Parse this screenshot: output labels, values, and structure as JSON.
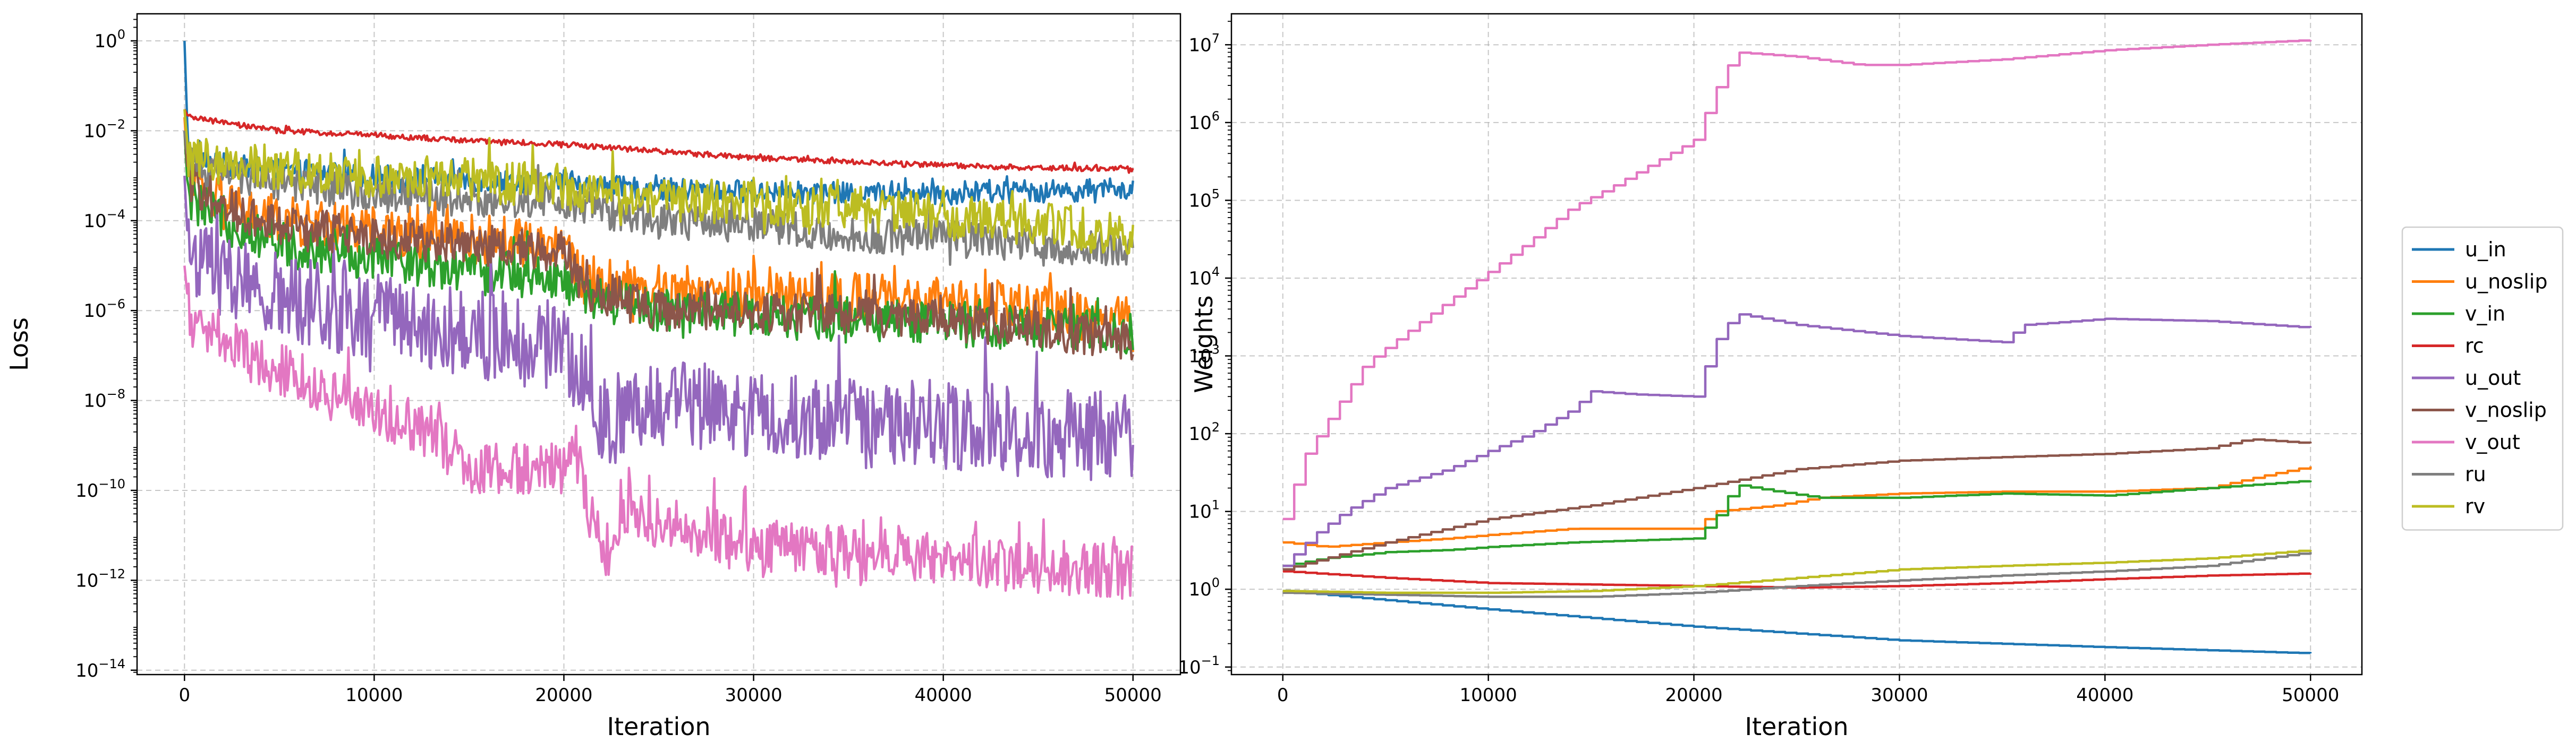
{
  "chart_data": [
    {
      "type": "line",
      "xlabel": "Iteration",
      "ylabel": "Loss",
      "yscale": "log",
      "xlim": [
        -2500,
        52500
      ],
      "ylim": [
        8e-15,
        4
      ],
      "xticks": [
        {
          "value": 0,
          "label": "0"
        },
        {
          "value": 10000,
          "label": "10000"
        },
        {
          "value": 20000,
          "label": "20000"
        },
        {
          "value": 30000,
          "label": "30000"
        },
        {
          "value": 40000,
          "label": "40000"
        },
        {
          "value": 50000,
          "label": "50000"
        }
      ],
      "yticks": [
        {
          "exp": 0,
          "label": "10",
          "sup": "0"
        },
        {
          "exp": -2,
          "label": "10",
          "sup": "−2"
        },
        {
          "exp": -4,
          "label": "10",
          "sup": "−4"
        },
        {
          "exp": -6,
          "label": "10",
          "sup": "−6"
        },
        {
          "exp": -8,
          "label": "10",
          "sup": "−8"
        },
        {
          "exp": -10,
          "label": "10",
          "sup": "−10"
        },
        {
          "exp": -12,
          "label": "10",
          "sup": "−12"
        },
        {
          "exp": -14,
          "label": "10",
          "sup": "−14"
        }
      ],
      "grid": true,
      "series": [
        {
          "name": "u_in",
          "color": "#1f77b4",
          "x": [
            0,
            200,
            2000,
            5000,
            10000,
            15000,
            20000,
            21000,
            25000,
            30000,
            35000,
            40000,
            45000,
            50000
          ],
          "y": [
            1.0,
            0.003,
            0.0018,
            0.0013,
            0.001,
            0.0008,
            0.0007,
            0.0006,
            0.0005,
            0.00045,
            0.0004,
            0.0004,
            0.00045,
            0.0005
          ],
          "noise": 0.25
        },
        {
          "name": "u_noslip",
          "color": "#ff7f0e",
          "x": [
            0,
            200,
            2000,
            5000,
            10000,
            15000,
            20000,
            21000,
            25000,
            30000,
            35000,
            40000,
            45000,
            50000
          ],
          "y": [
            0.02,
            0.001,
            0.0002,
            0.0001,
            6e-05,
            4e-05,
            3e-05,
            5e-06,
            3e-06,
            2.5e-06,
            2e-06,
            1.5e-06,
            1e-06,
            6e-07
          ],
          "noise": 0.55
        },
        {
          "name": "v_in",
          "color": "#2ca02c",
          "x": [
            0,
            200,
            2000,
            5000,
            10000,
            15000,
            20000,
            21000,
            25000,
            30000,
            35000,
            40000,
            45000,
            50000
          ],
          "y": [
            0.01,
            0.0003,
            0.0001,
            3e-05,
            1.5e-05,
            8e-06,
            5e-06,
            2e-06,
            1e-06,
            8e-07,
            6e-07,
            5e-07,
            4e-07,
            3e-07
          ],
          "noise": 0.5
        },
        {
          "name": "rc",
          "color": "#d62728",
          "x": [
            0,
            200,
            2000,
            5000,
            10000,
            15000,
            20000,
            25000,
            30000,
            35000,
            40000,
            45000,
            50000
          ],
          "y": [
            0.03,
            0.02,
            0.015,
            0.01,
            0.008,
            0.006,
            0.005,
            0.0035,
            0.0025,
            0.002,
            0.0017,
            0.0015,
            0.0014
          ],
          "noise": 0.06
        },
        {
          "name": "u_out",
          "color": "#9467bd",
          "x": [
            0,
            200,
            2000,
            5000,
            10000,
            15000,
            20000,
            21000,
            22000,
            25000,
            30000,
            35000,
            40000,
            45000,
            50000
          ],
          "y": [
            0.001,
            2e-05,
            5e-06,
            2e-06,
            8e-07,
            3e-07,
            1.5e-07,
            3e-08,
            3e-09,
            1e-08,
            5e-09,
            3e-09,
            3e-09,
            2e-09,
            1.5e-09
          ],
          "noise": 1.0
        },
        {
          "name": "v_noslip",
          "color": "#8c564b",
          "x": [
            0,
            200,
            2000,
            5000,
            10000,
            15000,
            20000,
            21000,
            25000,
            30000,
            35000,
            40000,
            45000,
            50000
          ],
          "y": [
            0.01,
            0.0008,
            0.0002,
            8e-05,
            4e-05,
            3e-05,
            2e-05,
            3e-06,
            1e-06,
            9e-07,
            8e-07,
            6e-07,
            4e-07,
            2e-07
          ],
          "noise": 0.45
        },
        {
          "name": "v_out",
          "color": "#e377c2",
          "x": [
            0,
            300,
            2000,
            5000,
            8000,
            10000,
            13000,
            15000,
            20000,
            20500,
            21000,
            22000,
            22800,
            23000,
            25000,
            30000,
            35000,
            40000,
            45000,
            50000
          ],
          "y": [
            1e-05,
            5e-07,
            2e-07,
            5e-08,
            1.2e-08,
            5e-09,
            2e-09,
            3e-10,
            3e-10,
            2e-09,
            1e-10,
            5e-12,
            4e-12,
            5e-11,
            2e-11,
            6e-12,
            4e-12,
            3e-12,
            2e-12,
            1.5e-12
          ],
          "noise": 0.6
        },
        {
          "name": "ru",
          "color": "#7f7f7f",
          "x": [
            0,
            200,
            2000,
            5000,
            10000,
            15000,
            20000,
            21000,
            25000,
            30000,
            35000,
            40000,
            45000,
            50000
          ],
          "y": [
            0.01,
            0.002,
            0.001,
            0.0007,
            0.0004,
            0.0003,
            0.0003,
            0.0002,
            0.0001,
            8e-05,
            5e-05,
            4e-05,
            3e-05,
            2e-05
          ],
          "noise": 0.4
        },
        {
          "name": "rv",
          "color": "#bcbd22",
          "x": [
            0,
            200,
            2000,
            5000,
            10000,
            15000,
            20000,
            21000,
            25000,
            30000,
            35000,
            40000,
            45000,
            50000
          ],
          "y": [
            0.03,
            0.003,
            0.002,
            0.0015,
            0.001,
            0.0008,
            0.0006,
            0.0004,
            0.0003,
            0.00025,
            0.0002,
            0.00012,
            8e-05,
            5e-05
          ],
          "noise": 0.5
        }
      ]
    },
    {
      "type": "line",
      "xlabel": "Iteration",
      "ylabel": "Weights",
      "yscale": "log",
      "xlim": [
        -2500,
        52500
      ],
      "ylim": [
        0.08,
        25000000.0
      ],
      "xticks": [
        {
          "value": 0,
          "label": "0"
        },
        {
          "value": 10000,
          "label": "10000"
        },
        {
          "value": 20000,
          "label": "20000"
        },
        {
          "value": 30000,
          "label": "30000"
        },
        {
          "value": 40000,
          "label": "40000"
        },
        {
          "value": 50000,
          "label": "50000"
        }
      ],
      "yticks": [
        {
          "exp": 7,
          "label": "10",
          "sup": "7"
        },
        {
          "exp": 6,
          "label": "10",
          "sup": "6"
        },
        {
          "exp": 5,
          "label": "10",
          "sup": "5"
        },
        {
          "exp": 4,
          "label": "10",
          "sup": "4"
        },
        {
          "exp": 3,
          "label": "10",
          "sup": "3"
        },
        {
          "exp": 2,
          "label": "10",
          "sup": "2"
        },
        {
          "exp": 1,
          "label": "10",
          "sup": "1"
        },
        {
          "exp": 0,
          "label": "10",
          "sup": "0"
        },
        {
          "exp": -1,
          "label": "10",
          "sup": "−1"
        }
      ],
      "grid": true,
      "legend_position": "right",
      "series": [
        {
          "name": "u_in",
          "color": "#1f77b4",
          "x": [
            0,
            10000,
            20000,
            30000,
            40000,
            50000
          ],
          "y": [
            0.95,
            0.55,
            0.33,
            0.22,
            0.18,
            0.15
          ]
        },
        {
          "name": "u_noslip",
          "color": "#ff7f0e",
          "x": [
            0,
            2000,
            5000,
            8000,
            10000,
            14000,
            20000,
            21000,
            24000,
            26000,
            30000,
            35000,
            40000,
            45000,
            48000,
            50000
          ],
          "y": [
            4.0,
            3.5,
            4.0,
            4.5,
            5.0,
            6.0,
            6.0,
            10.0,
            12.0,
            15.0,
            17.0,
            18.0,
            18.0,
            20.0,
            30.0,
            38.0
          ]
        },
        {
          "name": "v_in",
          "color": "#2ca02c",
          "x": [
            0,
            2000,
            5000,
            8000,
            10000,
            14000,
            20000,
            21000,
            22000,
            24000,
            26000,
            30000,
            35000,
            40000,
            45000,
            50000
          ],
          "y": [
            2.0,
            2.5,
            3.0,
            3.2,
            3.5,
            4.0,
            4.5,
            8.0,
            22.0,
            18.0,
            15.0,
            15.0,
            17.0,
            16.0,
            20.0,
            25.0
          ]
        },
        {
          "name": "rc",
          "color": "#d62728",
          "x": [
            0,
            5000,
            10000,
            15000,
            20000,
            25000,
            30000,
            35000,
            40000,
            45000,
            50000
          ],
          "y": [
            1.7,
            1.4,
            1.2,
            1.15,
            1.1,
            1.05,
            1.1,
            1.2,
            1.35,
            1.5,
            1.6
          ]
        },
        {
          "name": "u_out",
          "color": "#9467bd",
          "x": [
            0,
            1500,
            3000,
            5000,
            8000,
            10000,
            12000,
            14000,
            15000,
            17000,
            20000,
            21000,
            22000,
            25000,
            30000,
            35000,
            36000,
            40000,
            45000,
            50000
          ],
          "y": [
            2.0,
            5.0,
            10.0,
            20.0,
            35.0,
            60.0,
            100.0,
            200.0,
            350.0,
            320.0,
            300.0,
            1500.0,
            3500.0,
            2500.0,
            1800.0,
            1500.0,
            2500.0,
            3000.0,
            2800.0,
            2300.0
          ]
        },
        {
          "name": "v_noslip",
          "color": "#8c564b",
          "x": [
            0,
            5000,
            10000,
            15000,
            20000,
            25000,
            30000,
            35000,
            40000,
            45000,
            47000,
            50000
          ],
          "y": [
            1.8,
            4.0,
            8.0,
            12.0,
            20.0,
            35.0,
            45.0,
            50.0,
            55.0,
            65.0,
            85.0,
            75.0
          ]
        },
        {
          "name": "v_out",
          "color": "#e377c2",
          "x": [
            0,
            1000,
            2500,
            4000,
            6000,
            8000,
            10000,
            12000,
            14000,
            16000,
            18000,
            20000,
            21000,
            22000,
            25000,
            28000,
            30000,
            35000,
            40000,
            45000,
            50000
          ],
          "y": [
            8.0,
            50.0,
            200.0,
            800.0,
            2000.0,
            5000.0,
            12000.0,
            30000.0,
            80000.0,
            150000.0,
            300000.0,
            600000.0,
            2500000.0,
            8000000.0,
            7000000.0,
            5500000.0,
            5500000.0,
            6500000.0,
            8500000.0,
            10000000.0,
            11500000.0
          ]
        },
        {
          "name": "ru",
          "color": "#7f7f7f",
          "x": [
            0,
            5000,
            10000,
            15000,
            20000,
            25000,
            30000,
            35000,
            40000,
            45000,
            50000
          ],
          "y": [
            0.9,
            0.85,
            0.8,
            0.8,
            0.9,
            1.1,
            1.3,
            1.5,
            1.7,
            2.0,
            3.0
          ]
        },
        {
          "name": "rv",
          "color": "#bcbd22",
          "x": [
            0,
            5000,
            10000,
            15000,
            20000,
            25000,
            30000,
            35000,
            40000,
            45000,
            50000
          ],
          "y": [
            0.95,
            0.9,
            0.9,
            0.95,
            1.1,
            1.4,
            1.8,
            2.0,
            2.2,
            2.5,
            3.2
          ]
        }
      ]
    }
  ]
}
